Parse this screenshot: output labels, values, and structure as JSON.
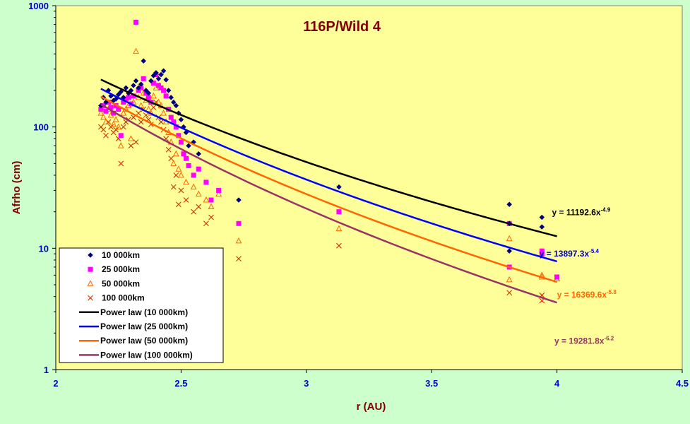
{
  "chart_data": {
    "type": "scatter",
    "title": "116P/Wild 4",
    "xlabel": "r (AU)",
    "ylabel": "Afrho (cm)",
    "xlim": [
      2,
      4.5
    ],
    "ylim": [
      1,
      1000
    ],
    "y_scale": "log",
    "x_ticks": [
      "2",
      "2.5",
      "3",
      "3.5",
      "4",
      "4.5"
    ],
    "y_ticks": [
      "1",
      "10",
      "100",
      "1000"
    ],
    "grid": false,
    "legend_position": "bottom-left",
    "colors": {
      "plot_background": "#ffff99",
      "outer_background": "#ccffcc",
      "tick_text": "#0000cc",
      "title_text": "#800000"
    },
    "series": [
      {
        "name": "10 000km",
        "marker": "diamond",
        "color": "#000080",
        "points": [
          [
            2.18,
            150
          ],
          [
            2.19,
            175
          ],
          [
            2.2,
            160
          ],
          [
            2.21,
            200
          ],
          [
            2.22,
            180
          ],
          [
            2.23,
            165
          ],
          [
            2.24,
            170
          ],
          [
            2.25,
            185
          ],
          [
            2.26,
            195
          ],
          [
            2.27,
            175
          ],
          [
            2.28,
            210
          ],
          [
            2.29,
            190
          ],
          [
            2.3,
            200
          ],
          [
            2.31,
            220
          ],
          [
            2.32,
            240
          ],
          [
            2.33,
            210
          ],
          [
            2.34,
            225
          ],
          [
            2.35,
            350
          ],
          [
            2.36,
            200
          ],
          [
            2.37,
            190
          ],
          [
            2.38,
            240
          ],
          [
            2.39,
            265
          ],
          [
            2.4,
            280
          ],
          [
            2.41,
            250
          ],
          [
            2.42,
            270
          ],
          [
            2.43,
            290
          ],
          [
            2.44,
            245
          ],
          [
            2.45,
            200
          ],
          [
            2.46,
            175
          ],
          [
            2.47,
            160
          ],
          [
            2.48,
            150
          ],
          [
            2.49,
            130
          ],
          [
            2.5,
            115
          ],
          [
            2.51,
            100
          ],
          [
            2.52,
            90
          ],
          [
            2.53,
            70
          ],
          [
            2.55,
            75
          ],
          [
            2.57,
            60
          ],
          [
            2.73,
            25
          ],
          [
            3.13,
            32
          ],
          [
            3.81,
            23
          ],
          [
            3.81,
            16
          ],
          [
            3.81,
            9.5
          ],
          [
            3.94,
            18
          ],
          [
            3.94,
            15
          ]
        ]
      },
      {
        "name": "25 000km",
        "marker": "square",
        "color": "#ff00ff",
        "points": [
          [
            2.18,
            140
          ],
          [
            2.19,
            150
          ],
          [
            2.2,
            135
          ],
          [
            2.21,
            160
          ],
          [
            2.22,
            145
          ],
          [
            2.23,
            130
          ],
          [
            2.24,
            150
          ],
          [
            2.25,
            140
          ],
          [
            2.26,
            85
          ],
          [
            2.27,
            160
          ],
          [
            2.28,
            170
          ],
          [
            2.29,
            175
          ],
          [
            2.3,
            155
          ],
          [
            2.31,
            180
          ],
          [
            2.32,
            730
          ],
          [
            2.33,
            200
          ],
          [
            2.34,
            210
          ],
          [
            2.35,
            250
          ],
          [
            2.36,
            190
          ],
          [
            2.37,
            175
          ],
          [
            2.38,
            160
          ],
          [
            2.39,
            230
          ],
          [
            2.4,
            270
          ],
          [
            2.41,
            220
          ],
          [
            2.42,
            210
          ],
          [
            2.43,
            200
          ],
          [
            2.44,
            180
          ],
          [
            2.45,
            140
          ],
          [
            2.46,
            120
          ],
          [
            2.47,
            110
          ],
          [
            2.48,
            100
          ],
          [
            2.49,
            85
          ],
          [
            2.5,
            75
          ],
          [
            2.51,
            60
          ],
          [
            2.52,
            55
          ],
          [
            2.53,
            48
          ],
          [
            2.55,
            40
          ],
          [
            2.57,
            45
          ],
          [
            2.6,
            35
          ],
          [
            2.62,
            25
          ],
          [
            2.65,
            30
          ],
          [
            2.73,
            16
          ],
          [
            3.13,
            20
          ],
          [
            3.81,
            16
          ],
          [
            3.81,
            7
          ],
          [
            3.94,
            9.5
          ],
          [
            3.94,
            9
          ],
          [
            4.0,
            5.8
          ]
        ]
      },
      {
        "name": "50 000km",
        "marker": "triangle",
        "color": "#ff6600",
        "points": [
          [
            2.18,
            130
          ],
          [
            2.19,
            120
          ],
          [
            2.2,
            110
          ],
          [
            2.21,
            140
          ],
          [
            2.22,
            125
          ],
          [
            2.23,
            105
          ],
          [
            2.24,
            115
          ],
          [
            2.25,
            100
          ],
          [
            2.26,
            70
          ],
          [
            2.27,
            130
          ],
          [
            2.28,
            140
          ],
          [
            2.29,
            150
          ],
          [
            2.3,
            80
          ],
          [
            2.31,
            160
          ],
          [
            2.32,
            420
          ],
          [
            2.33,
            175
          ],
          [
            2.34,
            150
          ],
          [
            2.35,
            190
          ],
          [
            2.36,
            165
          ],
          [
            2.37,
            140
          ],
          [
            2.38,
            130
          ],
          [
            2.39,
            180
          ],
          [
            2.4,
            210
          ],
          [
            2.41,
            160
          ],
          [
            2.42,
            150
          ],
          [
            2.43,
            130
          ],
          [
            2.44,
            110
          ],
          [
            2.45,
            90
          ],
          [
            2.46,
            75
          ],
          [
            2.47,
            50
          ],
          [
            2.48,
            60
          ],
          [
            2.49,
            45
          ],
          [
            2.5,
            40
          ],
          [
            2.52,
            35
          ],
          [
            2.55,
            32
          ],
          [
            2.57,
            28
          ],
          [
            2.6,
            25
          ],
          [
            2.62,
            22
          ],
          [
            2.65,
            28
          ],
          [
            2.73,
            11.5
          ],
          [
            3.13,
            14.5
          ],
          [
            3.81,
            12
          ],
          [
            3.81,
            5.5
          ],
          [
            3.94,
            6
          ],
          [
            3.94,
            5.8
          ],
          [
            4.0,
            5.6
          ]
        ]
      },
      {
        "name": "100 000km",
        "marker": "x",
        "color": "#cc3300",
        "points": [
          [
            2.18,
            100
          ],
          [
            2.19,
            95
          ],
          [
            2.2,
            85
          ],
          [
            2.21,
            110
          ],
          [
            2.22,
            100
          ],
          [
            2.23,
            90
          ],
          [
            2.24,
            95
          ],
          [
            2.25,
            80
          ],
          [
            2.26,
            50
          ],
          [
            2.27,
            100
          ],
          [
            2.28,
            110
          ],
          [
            2.29,
            115
          ],
          [
            2.3,
            70
          ],
          [
            2.31,
            120
          ],
          [
            2.32,
            75
          ],
          [
            2.33,
            130
          ],
          [
            2.34,
            110
          ],
          [
            2.35,
            140
          ],
          [
            2.36,
            125
          ],
          [
            2.37,
            115
          ],
          [
            2.38,
            105
          ],
          [
            2.39,
            145
          ],
          [
            2.4,
            160
          ],
          [
            2.41,
            120
          ],
          [
            2.42,
            110
          ],
          [
            2.43,
            95
          ],
          [
            2.44,
            80
          ],
          [
            2.45,
            65
          ],
          [
            2.46,
            55
          ],
          [
            2.47,
            32
          ],
          [
            2.48,
            40
          ],
          [
            2.49,
            23
          ],
          [
            2.5,
            30
          ],
          [
            2.52,
            25
          ],
          [
            2.55,
            20
          ],
          [
            2.57,
            22
          ],
          [
            2.6,
            16
          ],
          [
            2.62,
            18
          ],
          [
            2.73,
            8.2
          ],
          [
            3.13,
            10.5
          ],
          [
            3.81,
            4.3
          ],
          [
            3.94,
            4.1
          ],
          [
            3.94,
            3.7
          ],
          [
            4.0,
            5.7
          ]
        ]
      }
    ],
    "fits": [
      {
        "name": "Power law (10 000km)",
        "color": "#000000",
        "coefficient": 11192.6,
        "exponent": -4.9,
        "x_range": [
          2.18,
          4.0
        ],
        "eq_base": "y = 11192.6x",
        "eq_exp": "-4.9",
        "eq_color": "#000000",
        "eq_x": 3.98,
        "eq_y": 18.8
      },
      {
        "name": "Power law (25 000km)",
        "color": "#0000ff",
        "coefficient": 13897.3,
        "exponent": -5.4,
        "x_range": [
          2.18,
          4.0
        ],
        "eq_base": "y = 13897.3x",
        "eq_exp": "-5.4",
        "eq_color": "#0000cc",
        "eq_x": 3.93,
        "eq_y": 8.55
      },
      {
        "name": "Power law (50 000km)",
        "color": "#ff6600",
        "coefficient": 16369.6,
        "exponent": -5.8,
        "x_range": [
          2.18,
          4.0
        ],
        "eq_base": "y = 16369.6x",
        "eq_exp": "-5.8",
        "eq_color": "#ff6600",
        "eq_x": 4.0,
        "eq_y": 3.94
      },
      {
        "name": "Power law (100 000km)",
        "color": "#993366",
        "coefficient": 19281.8,
        "exponent": -6.2,
        "x_range": [
          2.18,
          4.0
        ],
        "eq_base": "y = 19281.8x",
        "eq_exp": "-6.2",
        "eq_color": "#993366",
        "eq_x": 3.99,
        "eq_y": 1.63
      }
    ]
  }
}
